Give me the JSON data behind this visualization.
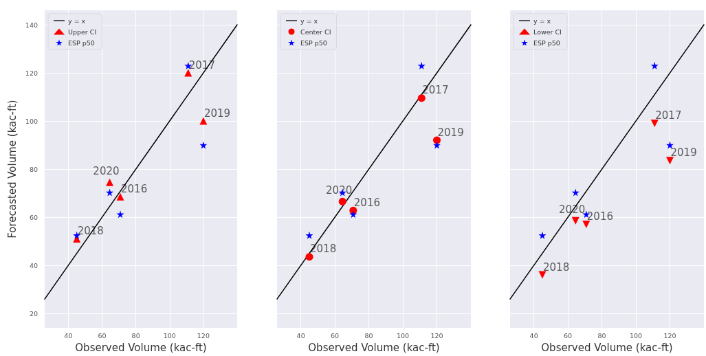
{
  "chart_data": [
    {
      "type": "scatter",
      "xlabel": "Observed Volume (kac-ft)",
      "ylabel": "Forecasted Volume (kac-ft)",
      "xlim": [
        26,
        140
      ],
      "ylim": [
        14,
        146
      ],
      "xticks": [
        40,
        60,
        80,
        100,
        120
      ],
      "yticks": [
        20,
        40,
        60,
        80,
        100,
        120,
        140
      ],
      "grid": true,
      "legend": "top left",
      "series": [
        {
          "name": "y = x",
          "type": "line",
          "x": [
            26,
            140
          ],
          "values": [
            26,
            140
          ],
          "color": "#000000",
          "marker": "none",
          "line_style": "solid"
        },
        {
          "name": "Upper CI",
          "x": [
            45,
            64.5,
            70.8,
            111,
            120
          ],
          "values": [
            51,
            74.5,
            68.5,
            120,
            100
          ],
          "color": "#ff0000",
          "marker": "triangle"
        },
        {
          "name": "ESP p50",
          "x": [
            45,
            64.5,
            70.8,
            111,
            120
          ],
          "values": [
            52.5,
            70.3,
            61.2,
            123,
            90
          ],
          "color": "#0000ff",
          "marker": "star"
        }
      ],
      "annotations": [
        {
          "text": "2018",
          "x": 45,
          "y": 51
        },
        {
          "text": "2020",
          "x": 64.5,
          "y": 74.5
        },
        {
          "text": "2016",
          "x": 70.8,
          "y": 68.5
        },
        {
          "text": "2017",
          "x": 111,
          "y": 120
        },
        {
          "text": "2019",
          "x": 120,
          "y": 100
        }
      ]
    },
    {
      "type": "scatter",
      "xlabel": "Observed Volume (kac-ft)",
      "xlim": [
        26,
        140
      ],
      "ylim": [
        14,
        146
      ],
      "xticks": [
        40,
        60,
        80,
        100,
        120
      ],
      "yticks": [
        20,
        40,
        60,
        80,
        100,
        120,
        140
      ],
      "grid": true,
      "legend": "top left",
      "tick_labels": "x",
      "series": [
        {
          "name": "y = x",
          "type": "line",
          "x": [
            26,
            140
          ],
          "values": [
            26,
            140
          ],
          "color": "#000000",
          "marker": "none",
          "line_style": "solid"
        },
        {
          "name": "Center CI",
          "x": [
            45,
            64.5,
            70.8,
            111,
            120
          ],
          "values": [
            43.5,
            66.5,
            62.8,
            109.5,
            92
          ],
          "color": "#ff0000",
          "marker": "circle"
        },
        {
          "name": "ESP p50",
          "x": [
            45,
            64.5,
            70.8,
            111,
            120
          ],
          "values": [
            52.5,
            70.3,
            61.2,
            123,
            90
          ],
          "color": "#0000ff",
          "marker": "star"
        }
      ],
      "annotations": [
        {
          "text": "2018",
          "x": 45,
          "y": 43.5
        },
        {
          "text": "2020",
          "x": 64.5,
          "y": 66.5
        },
        {
          "text": "2016",
          "x": 70.8,
          "y": 62.8
        },
        {
          "text": "2017",
          "x": 111,
          "y": 109.5
        },
        {
          "text": "2019",
          "x": 120,
          "y": 92
        }
      ]
    },
    {
      "type": "scatter",
      "xlabel": "Observed Volume (kac-ft)",
      "xlim": [
        26,
        140
      ],
      "ylim": [
        14,
        146
      ],
      "xticks": [
        40,
        60,
        80,
        100,
        120
      ],
      "yticks": [
        20,
        40,
        60,
        80,
        100,
        120,
        140
      ],
      "grid": true,
      "legend": "top left",
      "tick_labels": "x",
      "series": [
        {
          "name": "y = x",
          "type": "line",
          "x": [
            26,
            140
          ],
          "values": [
            26,
            140
          ],
          "color": "#000000",
          "marker": "none",
          "line_style": "solid"
        },
        {
          "name": "Lower CI",
          "x": [
            45,
            64.5,
            70.8,
            111,
            120
          ],
          "values": [
            36,
            58.5,
            57,
            99,
            83.5
          ],
          "color": "#ff0000",
          "marker": "triangle-down"
        },
        {
          "name": "ESP p50",
          "x": [
            45,
            64.5,
            70.8,
            111,
            120
          ],
          "values": [
            52.5,
            70.3,
            61.2,
            123,
            90
          ],
          "color": "#0000ff",
          "marker": "star"
        }
      ],
      "annotations": [
        {
          "text": "2018",
          "x": 45,
          "y": 36
        },
        {
          "text": "2020",
          "x": 64.5,
          "y": 58.5
        },
        {
          "text": "2016",
          "x": 70.8,
          "y": 57
        },
        {
          "text": "2017",
          "x": 111,
          "y": 99
        },
        {
          "text": "2019",
          "x": 120,
          "y": 83.5
        }
      ]
    }
  ]
}
